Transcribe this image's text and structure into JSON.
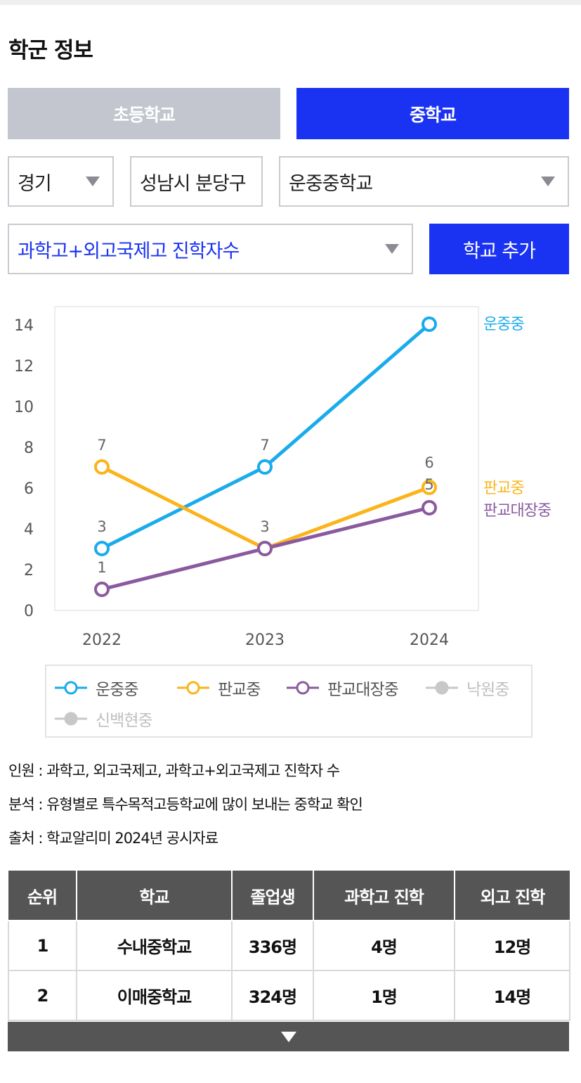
{
  "page": {
    "title": "학군 정보"
  },
  "tabs": [
    {
      "label": "초등학교",
      "active": false
    },
    {
      "label": "중학교",
      "active": true
    }
  ],
  "filters": {
    "province": "경기",
    "city": "성남시 분당구",
    "school": "운중중학교",
    "metric": "과학고+외고국제고 진학자수",
    "add_button": "학교 추가"
  },
  "colors": {
    "accent": "#1a33f2",
    "tab_inactive": "#c3c6cf",
    "unjung": "#1aabec",
    "pangyo": "#fbb41a",
    "pangyo_daejang": "#8a5a9e",
    "disabled": "#c8c8c8"
  },
  "chart_data": {
    "type": "line",
    "x": [
      "2022",
      "2023",
      "2024"
    ],
    "ylim": [
      0,
      14
    ],
    "yticks": [
      "0",
      "2",
      "4",
      "6",
      "8",
      "10",
      "12",
      "14"
    ],
    "grid": false,
    "series": [
      {
        "name": "운중중",
        "values": [
          3,
          7,
          14
        ],
        "labels": [
          "3",
          "7",
          ""
        ],
        "color": "#1aabec",
        "end_label": "운중중"
      },
      {
        "name": "판교중",
        "values": [
          7,
          3,
          6
        ],
        "labels": [
          "7",
          "3",
          "6"
        ],
        "color": "#fbb41a",
        "end_label": "판교중"
      },
      {
        "name": "판교대장중",
        "values": [
          1,
          3,
          5
        ],
        "labels": [
          "1",
          "",
          "5"
        ],
        "color": "#8a5a9e",
        "end_label": "판교대장중"
      }
    ],
    "legend": [
      {
        "name": "운중중",
        "color": "#1aabec",
        "enabled": true
      },
      {
        "name": "판교중",
        "color": "#fbb41a",
        "enabled": true
      },
      {
        "name": "판교대장중",
        "color": "#8a5a9e",
        "enabled": true
      },
      {
        "name": "낙원중",
        "color": "#c8c8c8",
        "enabled": false
      },
      {
        "name": "신백현중",
        "color": "#c8c8c8",
        "enabled": false
      }
    ],
    "legend_position": "bottom"
  },
  "notes": [
    "인원 : 과학고, 외고국제고, 과학고+외고국제고 진학자 수",
    "분석 : 유형별로 특수목적고등학교에 많이 보내는 중학교 확인",
    "출처 : 학교알리미 2024년 공시자료"
  ],
  "table": {
    "headers": [
      "순위",
      "학교",
      "졸업생",
      "과학고 진학",
      "외고 진학"
    ],
    "rows": [
      [
        "1",
        "수내중학교",
        "336명",
        "4명",
        "12명"
      ],
      [
        "2",
        "이매중학교",
        "324명",
        "1명",
        "14명"
      ]
    ]
  }
}
